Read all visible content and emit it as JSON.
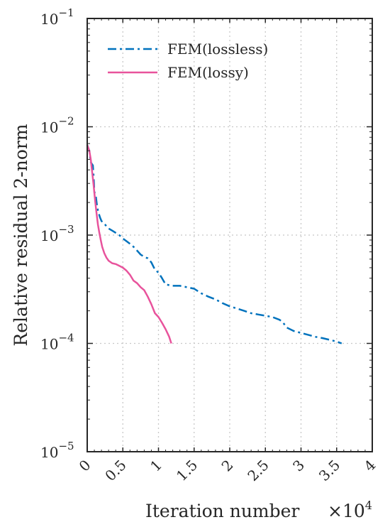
{
  "chart_data": {
    "type": "line",
    "xlabel": "Iteration number",
    "x_multiplier_label": "×10",
    "x_multiplier_exponent": "4",
    "ylabel": "Relative residual 2-norm",
    "xlim": [
      0,
      40000
    ],
    "ylim": [
      1e-05,
      0.1
    ],
    "yscale": "log",
    "grid": true,
    "legend_position": "top-left",
    "x_ticks": [
      0,
      5000,
      10000,
      15000,
      20000,
      25000,
      30000,
      35000,
      40000
    ],
    "x_tick_labels": [
      "0",
      "0.5",
      "1",
      "1.5",
      "2",
      "2.5",
      "3",
      "3.5",
      "4"
    ],
    "y_ticks": [
      1e-05,
      0.0001,
      0.001,
      0.01,
      0.1
    ],
    "y_tick_bases": [
      "10",
      "10",
      "10",
      "10",
      "10"
    ],
    "y_tick_exponents": [
      "−5",
      "−4",
      "−3",
      "−2",
      "−1"
    ],
    "series": [
      {
        "name": "FEM(lossless)",
        "color": "#0072BD",
        "style": "dashdot",
        "x": [
          0,
          300,
          500,
          600,
          700,
          800,
          900,
          1000,
          1200,
          1400,
          1600,
          1800,
          2000,
          2200,
          2500,
          3000,
          3500,
          4000,
          4500,
          5000,
          5500,
          6000,
          6500,
          7000,
          7500,
          8000,
          8500,
          9000,
          9500,
          10000,
          10500,
          11000,
          12000,
          13000,
          14000,
          15000,
          16000,
          17000,
          18000,
          19000,
          20000,
          21000,
          22000,
          23000,
          24000,
          25000,
          26000,
          27000,
          27500,
          28000,
          29000,
          30000,
          31000,
          32000,
          33000,
          34000,
          35000,
          35700
        ],
        "y": [
          0.0068,
          0.006,
          0.0047,
          0.0046,
          0.0045,
          0.0044,
          0.0035,
          0.0025,
          0.0023,
          0.0018,
          0.0016,
          0.00145,
          0.00135,
          0.0013,
          0.00125,
          0.00115,
          0.0011,
          0.00105,
          0.001,
          0.00093,
          0.00088,
          0.00083,
          0.00078,
          0.00072,
          0.00066,
          0.00063,
          0.00061,
          0.00056,
          0.00048,
          0.00045,
          0.0004,
          0.00035,
          0.00034,
          0.00034,
          0.00033,
          0.00032,
          0.00029,
          0.00027,
          0.000255,
          0.000235,
          0.00022,
          0.00021,
          0.0002,
          0.00019,
          0.000185,
          0.00018,
          0.000175,
          0.000165,
          0.000155,
          0.00014,
          0.00013,
          0.000125,
          0.00012,
          0.000115,
          0.000112,
          0.000108,
          0.000104,
          0.0001
        ]
      },
      {
        "name": "FEM(lossy)",
        "color": "#E8539C",
        "style": "solid",
        "x": [
          0,
          300,
          500,
          700,
          900,
          1100,
          1300,
          1500,
          1700,
          1900,
          2100,
          2400,
          2700,
          3000,
          3500,
          4000,
          4500,
          5000,
          5500,
          6000,
          6500,
          7000,
          7500,
          8000,
          8500,
          9000,
          9500,
          10000,
          10500,
          11000,
          11500,
          11800
        ],
        "y": [
          0.0068,
          0.006,
          0.005,
          0.0038,
          0.0029,
          0.0021,
          0.0016,
          0.00125,
          0.00105,
          0.0009,
          0.00078,
          0.00068,
          0.00062,
          0.00058,
          0.00055,
          0.00054,
          0.00052,
          0.0005,
          0.00047,
          0.00043,
          0.00038,
          0.00036,
          0.00033,
          0.00031,
          0.00027,
          0.00023,
          0.00019,
          0.000175,
          0.000155,
          0.000135,
          0.000115,
          0.0001
        ]
      }
    ]
  }
}
